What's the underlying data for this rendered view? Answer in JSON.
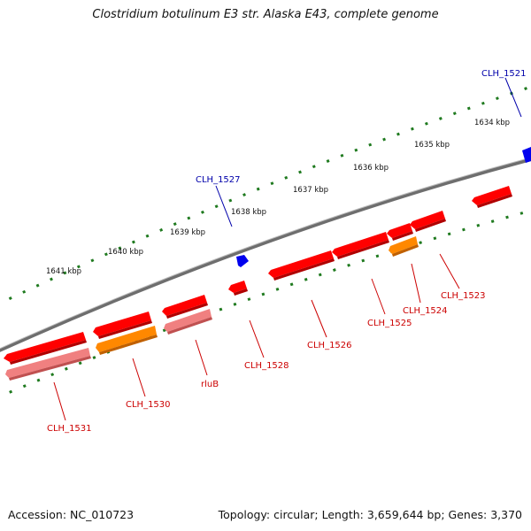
{
  "title": "Clostridium botulinum E3 str. Alaska E43, complete genome",
  "footer": {
    "accession": "Accession: NC_010723",
    "summary": "Topology: circular; Length: 3,659,644 bp; Genes: 3,370"
  },
  "colors": {
    "backbone": "#7a7a7a",
    "tick": "#1f7a1f",
    "gene_red": "#ff0000",
    "gene_orange": "#ff8800",
    "gene_pink": "#f08080",
    "forward_feature": "#0000ee",
    "label_red": "#cc0000",
    "label_blue": "#0000aa"
  },
  "scale_labels": [
    "1634 kbp",
    "1635 kbp",
    "1636 kbp",
    "1637 kbp",
    "1638 kbp",
    "1639 kbp",
    "1640 kbp",
    "1641 kbp"
  ],
  "forward_labels": [
    "CLH_1521",
    "CLH_1527"
  ],
  "reverse_labels": [
    "CLH_1523",
    "CLH_1524",
    "CLH_1525",
    "CLH_1526",
    "CLH_1528",
    "rluB",
    "CLH_1530",
    "CLH_1531"
  ]
}
